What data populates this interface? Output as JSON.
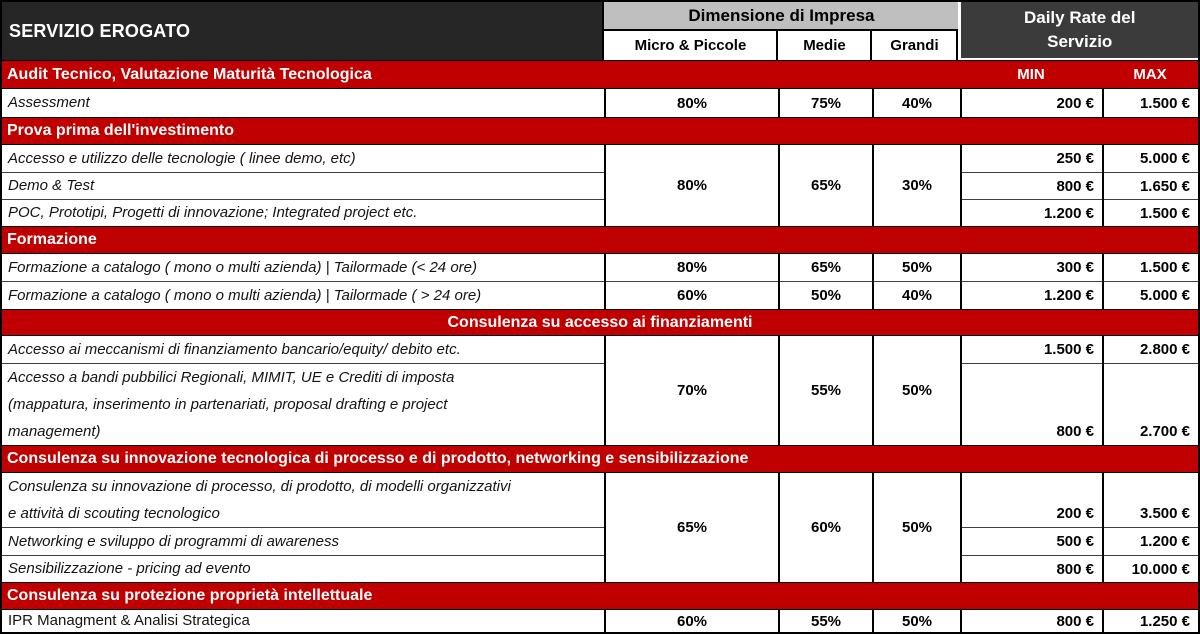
{
  "header": {
    "servizio_erogato": "SERVIZIO EROGATO",
    "dimensione_impresa": "Dimensione di Impresa",
    "size_columns": [
      "Micro & Piccole",
      "Medie",
      "Grandi"
    ],
    "daily_rate": "Daily Rate del Servizio",
    "min_label": "MIN",
    "max_label": "MAX"
  },
  "colors": {
    "dark_header": "#262626",
    "daily_rate_bg": "#3b3b3b",
    "gray_header": "#bfbfbf",
    "section_red": "#c00000"
  },
  "sections": [
    {
      "title": "Audit Tecnico, Valutazione Maturità Tecnologica",
      "align": "left",
      "rows": [
        {
          "service": "Assessment",
          "italic": true,
          "min": "200 €",
          "max": "1.500 €"
        }
      ],
      "pct_groups": [
        {
          "span": 1,
          "micro": "80%",
          "medie": "75%",
          "grandi": "40%"
        }
      ]
    },
    {
      "title": "Prova prima dell'investimento",
      "align": "left",
      "rows": [
        {
          "service": "Accesso e utilizzo delle tecnologie ( linee demo, etc)",
          "italic": true,
          "min": "250 €",
          "max": "5.000 €"
        },
        {
          "service": "Demo & Test",
          "italic": true,
          "min": "800 €",
          "max": "1.650 €"
        },
        {
          "service": "POC, Prototipi, Progetti di innovazione; Integrated project etc.",
          "italic": true,
          "min": "1.200 €",
          "max": "1.500 €"
        }
      ],
      "pct_groups": [
        {
          "span": 3,
          "micro": "80%",
          "medie": "65%",
          "grandi": "30%"
        }
      ]
    },
    {
      "title": "Formazione",
      "align": "left",
      "rows": [
        {
          "service": "Formazione a catalogo ( mono o multi azienda) | Tailormade (<  24 ore)",
          "italic": true,
          "min": "300 €",
          "max": "1.500 €"
        },
        {
          "service": "Formazione a catalogo ( mono o multi azienda) | Tailormade ( > 24 ore)",
          "italic": true,
          "min": "1.200 €",
          "max": "5.000 €"
        }
      ],
      "pct_groups": [
        {
          "span": 1,
          "micro": "80%",
          "medie": "65%",
          "grandi": "50%"
        },
        {
          "span": 1,
          "micro": "60%",
          "medie": "50%",
          "grandi": "40%"
        }
      ]
    },
    {
      "title": "Consulenza su accesso ai finanziamenti",
      "align": "center",
      "rows": [
        {
          "service": "Accesso ai meccanismi di finanziamento bancario/equity/ debito etc.",
          "italic": true,
          "min": "1.500 €",
          "max": "2.800 €"
        },
        {
          "service": [
            "Accesso a bandi pubbilici Regionali, MIMIT, UE e Crediti di imposta",
            "(mappatura, inserimento in partenariati, proposal drafting e project",
            "management)"
          ],
          "italic": true,
          "min": "800 €",
          "max": "2.700 €",
          "valign": "bottom"
        }
      ],
      "pct_groups": [
        {
          "span": 2,
          "micro": "70%",
          "medie": "55%",
          "grandi": "50%"
        }
      ]
    },
    {
      "title": "Consulenza su innovazione tecnologica di processo e di prodotto, networking e sensibilizzazione",
      "align": "left",
      "rows": [
        {
          "service": [
            "Consulenza su innovazione di processo, di prodotto, di modelli organizzativi",
            "e attività di scouting tecnologico"
          ],
          "italic": true,
          "min": "200 €",
          "max": "3.500 €",
          "valign": "bottom"
        },
        {
          "service": "Networking e sviluppo di programmi di awareness",
          "italic": true,
          "min": "500 €",
          "max": "1.200 €"
        },
        {
          "service": "Sensibilizzazione - pricing ad evento",
          "italic": true,
          "min": "800 €",
          "max": "10.000 €"
        }
      ],
      "pct_groups": [
        {
          "span": 3,
          "micro": "65%",
          "medie": "60%",
          "grandi": "50%"
        }
      ]
    },
    {
      "title": "Consulenza su protezione proprietà intellettuale",
      "align": "left",
      "rows": [
        {
          "service": "IPR Managment & Analisi Strategica",
          "italic": false,
          "min": "800 €",
          "max": "1.250 €"
        }
      ],
      "pct_groups": [
        {
          "span": 1,
          "micro": "60%",
          "medie": "55%",
          "grandi": "50%"
        }
      ]
    }
  ]
}
